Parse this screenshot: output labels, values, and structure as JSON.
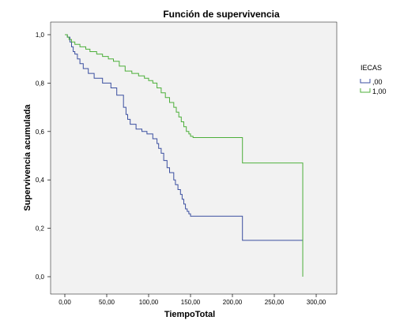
{
  "chart_data": {
    "type": "line",
    "title": "Función de supervivencia",
    "xlabel": "TiempoTotal",
    "ylabel": "Supervivencia acumulada",
    "xlim": [
      0,
      300
    ],
    "ylim": [
      0,
      1
    ],
    "x_ticks": [
      "0,00",
      "50,00",
      "100,00",
      "150,00",
      "200,00",
      "250,00",
      "300,00"
    ],
    "x_tick_values": [
      0,
      50,
      100,
      150,
      200,
      250,
      300
    ],
    "y_ticks": [
      "0,0",
      "0,2",
      "0,4",
      "0,6",
      "0,8",
      "1,0"
    ],
    "y_tick_values": [
      0,
      0.2,
      0.4,
      0.6,
      0.8,
      1.0
    ],
    "grid": false,
    "legend_title": "IECAS",
    "legend_position": "right",
    "series": [
      {
        "name": ",00",
        "color": "#3b4fa0",
        "x": [
          0,
          3,
          6,
          8,
          10,
          12,
          15,
          18,
          22,
          28,
          35,
          45,
          55,
          62,
          70,
          73,
          75,
          78,
          85,
          92,
          98,
          105,
          110,
          112,
          115,
          118,
          122,
          125,
          130,
          132,
          135,
          138,
          140,
          142,
          144,
          146,
          148,
          150,
          155,
          160,
          165,
          180,
          210,
          212,
          240,
          270,
          284
        ],
        "y": [
          1.0,
          0.99,
          0.97,
          0.95,
          0.93,
          0.92,
          0.9,
          0.88,
          0.86,
          0.84,
          0.82,
          0.8,
          0.78,
          0.75,
          0.7,
          0.67,
          0.65,
          0.63,
          0.61,
          0.6,
          0.59,
          0.57,
          0.55,
          0.53,
          0.51,
          0.48,
          0.45,
          0.43,
          0.4,
          0.38,
          0.36,
          0.34,
          0.32,
          0.3,
          0.28,
          0.27,
          0.26,
          0.25,
          0.25,
          0.25,
          0.25,
          0.25,
          0.25,
          0.15,
          0.15,
          0.15,
          0.0
        ]
      },
      {
        "name": "1,00",
        "color": "#4caf3a",
        "x": [
          0,
          3,
          5,
          8,
          12,
          18,
          25,
          30,
          38,
          45,
          52,
          58,
          65,
          72,
          80,
          88,
          95,
          100,
          105,
          110,
          115,
          120,
          125,
          130,
          133,
          136,
          139,
          142,
          145,
          148,
          150,
          153,
          155,
          160,
          170,
          180,
          200,
          210,
          212,
          240,
          270,
          284
        ],
        "y": [
          1.0,
          0.99,
          0.98,
          0.97,
          0.96,
          0.95,
          0.94,
          0.93,
          0.92,
          0.91,
          0.9,
          0.89,
          0.87,
          0.85,
          0.84,
          0.83,
          0.82,
          0.81,
          0.8,
          0.78,
          0.76,
          0.74,
          0.72,
          0.7,
          0.68,
          0.66,
          0.64,
          0.62,
          0.6,
          0.59,
          0.58,
          0.575,
          0.575,
          0.575,
          0.575,
          0.575,
          0.575,
          0.575,
          0.47,
          0.47,
          0.47,
          0.0
        ]
      }
    ]
  }
}
